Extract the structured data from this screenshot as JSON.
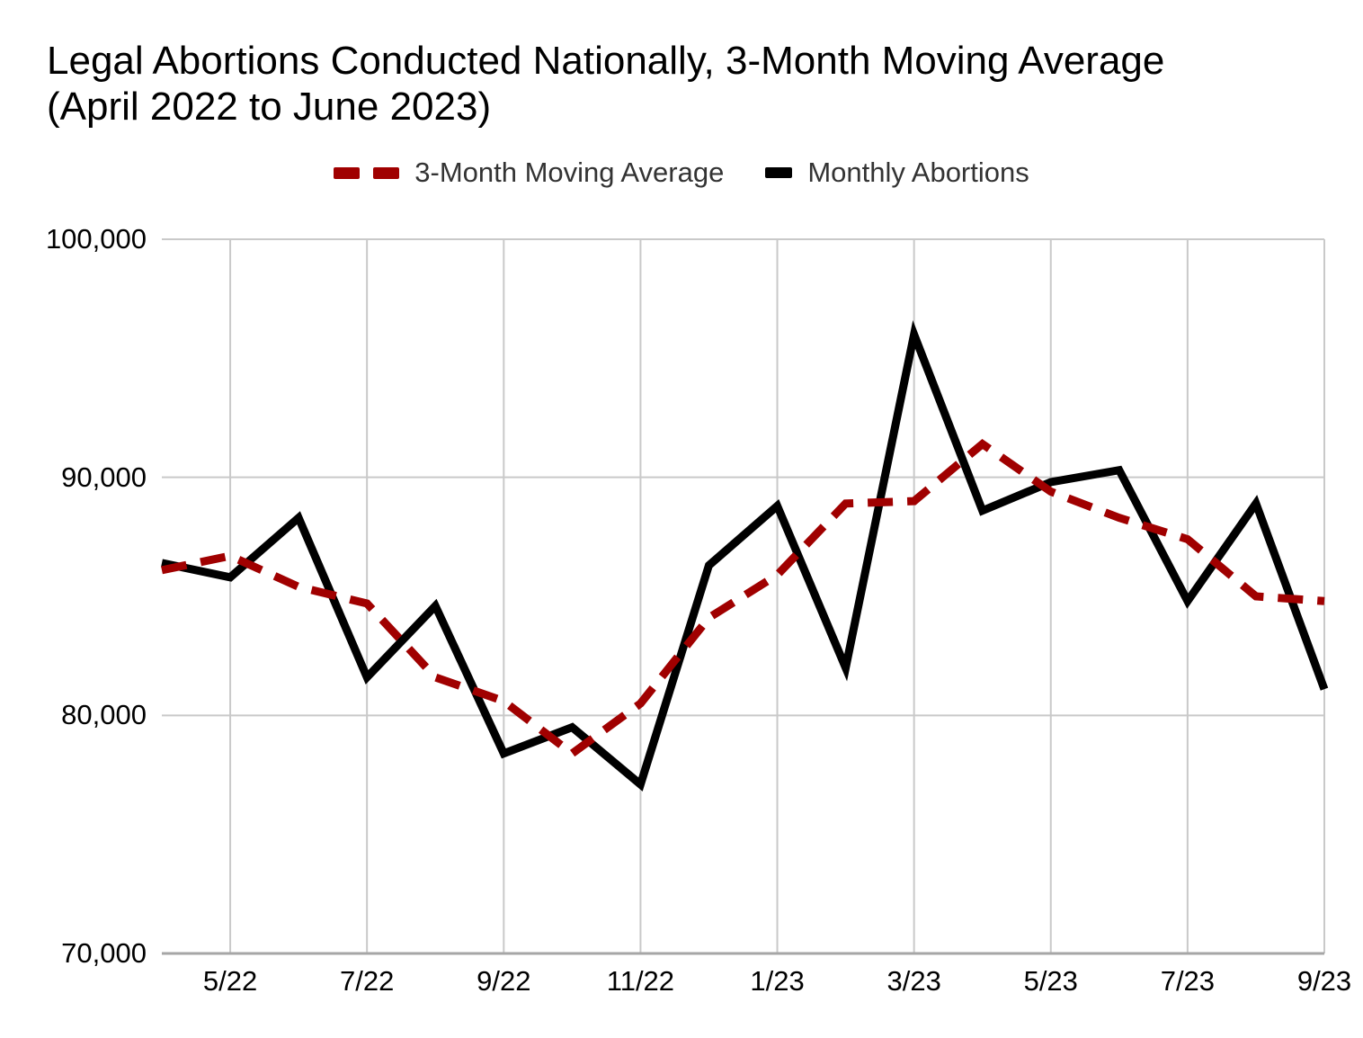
{
  "title": {
    "line1": "Legal Abortions Conducted Nationally, 3-Month Moving Average",
    "line2": "(April 2022 to June 2023)",
    "full": "Legal Abortions Conducted Nationally, 3-Month Moving Average (April 2022 to June 2023)"
  },
  "legend": {
    "items": [
      {
        "label": "3-Month Moving Average",
        "style": "dashed",
        "color": "#A00000"
      },
      {
        "label": "Monthly Abortions",
        "style": "solid",
        "color": "#000000"
      }
    ]
  },
  "colors": {
    "moving_average_line": "#A00000",
    "monthly_line": "#000000",
    "gridline": "#c9c9c9",
    "baseline": "#a6a6a6",
    "legend_text": "#333333",
    "background": "#ffffff"
  },
  "chart_data": {
    "type": "line",
    "title": "Legal Abortions Conducted Nationally, 3-Month Moving Average (April 2022 to June 2023)",
    "x": [
      "4/22",
      "5/22",
      "6/22",
      "7/22",
      "8/22",
      "9/22",
      "10/22",
      "11/22",
      "12/22",
      "1/23",
      "2/23",
      "3/23",
      "4/23",
      "5/23",
      "6/23",
      "7/23",
      "8/23",
      "9/23"
    ],
    "x_tick_labels": [
      "5/22",
      "7/22",
      "9/22",
      "11/22",
      "1/23",
      "3/23",
      "5/23",
      "7/23",
      "9/23"
    ],
    "y_ticks": [
      100000,
      90000,
      80000,
      70000
    ],
    "y_tick_labels": [
      "100,000",
      "90,000",
      "80,000",
      "70,000"
    ],
    "ylim": [
      70000,
      100000
    ],
    "grid": true,
    "legend_position": "top",
    "series": [
      {
        "name": "Monthly Abortions",
        "style": "solid",
        "color": "#000000",
        "values": [
          86400,
          85800,
          88300,
          81600,
          84600,
          78400,
          79500,
          77100,
          86300,
          88800,
          82000,
          96000,
          88600,
          89800,
          90300,
          84800,
          88900,
          81100
        ]
      },
      {
        "name": "3-Month Moving Average",
        "style": "dashed",
        "color": "#A00000",
        "values": [
          86100,
          86700,
          85400,
          84700,
          81600,
          80600,
          78400,
          80500,
          84100,
          85900,
          88900,
          89000,
          91400,
          89400,
          88300,
          87400,
          85000,
          84800
        ]
      }
    ]
  }
}
